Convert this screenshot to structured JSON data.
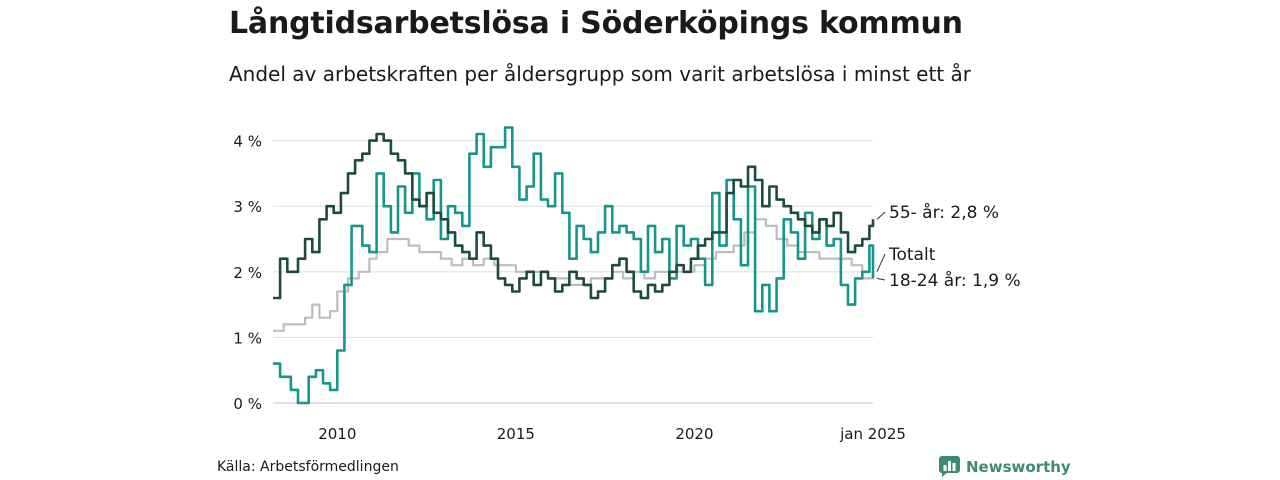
{
  "title": "Långtidsarbetslösa i Söderköpings kommun",
  "subtitle": "Andel av arbetskraften per åldersgrupp som varit arbetslösa i minst ett år",
  "source": "Källa: Arbetsförmedlingen",
  "brand": {
    "name": "Newsworthy",
    "icon": "bar-chart-logo-icon"
  },
  "colors": {
    "series_55": "#1f4a3e",
    "series_18_24": "#16968a",
    "series_total": "#bcbcc2",
    "grid": "#e2e2e2"
  },
  "chart_data": {
    "type": "line",
    "title": "Långtidsarbetslösa i Söderköpings kommun",
    "xlabel": "",
    "ylabel": "",
    "x_range": [
      2008.2,
      2025.0
    ],
    "ylim": [
      0,
      4.3
    ],
    "grid": true,
    "x_ticks": [
      {
        "value": 2010,
        "label": "2010"
      },
      {
        "value": 2015,
        "label": "2015"
      },
      {
        "value": 2020,
        "label": "2020"
      },
      {
        "value": 2025,
        "label": "jan 2025"
      }
    ],
    "y_ticks": [
      {
        "value": 0,
        "label": "0 %"
      },
      {
        "value": 1,
        "label": "1 %"
      },
      {
        "value": 2,
        "label": "2 %"
      },
      {
        "value": 3,
        "label": "3 %"
      },
      {
        "value": 4,
        "label": "4 %"
      }
    ],
    "series": [
      {
        "name": "Totalt",
        "end_label": "Totalt",
        "color": "#bcbcc2",
        "x": [
          2008.2,
          2008.5,
          2008.8,
          2009.1,
          2009.3,
          2009.5,
          2009.8,
          2010.0,
          2010.3,
          2010.6,
          2010.9,
          2011.1,
          2011.4,
          2011.7,
          2012.0,
          2012.3,
          2012.6,
          2012.9,
          2013.2,
          2013.5,
          2013.8,
          2014.1,
          2014.4,
          2014.7,
          2015.0,
          2015.3,
          2015.6,
          2015.9,
          2016.2,
          2016.5,
          2016.8,
          2017.1,
          2017.4,
          2017.7,
          2018.0,
          2018.3,
          2018.6,
          2018.9,
          2019.2,
          2019.5,
          2019.8,
          2020.0,
          2020.3,
          2020.6,
          2020.9,
          2021.1,
          2021.4,
          2021.7,
          2022.0,
          2022.3,
          2022.6,
          2022.9,
          2023.2,
          2023.5,
          2023.8,
          2024.1,
          2024.4,
          2024.7,
          2025.0
        ],
        "values": [
          1.1,
          1.2,
          1.2,
          1.3,
          1.5,
          1.3,
          1.4,
          1.7,
          1.9,
          2.0,
          2.2,
          2.3,
          2.5,
          2.5,
          2.4,
          2.3,
          2.3,
          2.2,
          2.1,
          2.2,
          2.1,
          2.2,
          2.1,
          2.1,
          2.0,
          2.0,
          2.0,
          1.9,
          1.9,
          1.8,
          1.8,
          1.9,
          1.9,
          2.0,
          1.9,
          2.0,
          1.9,
          2.0,
          2.0,
          2.0,
          2.0,
          2.1,
          2.2,
          2.3,
          2.3,
          2.4,
          2.6,
          2.8,
          2.7,
          2.5,
          2.4,
          2.3,
          2.3,
          2.2,
          2.2,
          2.2,
          2.1,
          1.9,
          2.0
        ]
      },
      {
        "name": "18-24 år",
        "end_label": "18-24 år: 1,9 %",
        "color": "#16968a",
        "x": [
          2008.2,
          2008.4,
          2008.7,
          2008.9,
          2009.2,
          2009.4,
          2009.6,
          2009.8,
          2010.0,
          2010.2,
          2010.4,
          2010.7,
          2010.9,
          2011.1,
          2011.3,
          2011.5,
          2011.7,
          2011.9,
          2012.1,
          2012.3,
          2012.5,
          2012.7,
          2012.9,
          2013.1,
          2013.3,
          2013.5,
          2013.7,
          2013.9,
          2014.1,
          2014.3,
          2014.5,
          2014.7,
          2014.9,
          2015.1,
          2015.3,
          2015.5,
          2015.7,
          2015.9,
          2016.1,
          2016.3,
          2016.5,
          2016.7,
          2016.9,
          2017.1,
          2017.3,
          2017.5,
          2017.7,
          2017.9,
          2018.1,
          2018.3,
          2018.5,
          2018.7,
          2018.9,
          2019.1,
          2019.3,
          2019.5,
          2019.7,
          2019.9,
          2020.1,
          2020.3,
          2020.5,
          2020.7,
          2020.9,
          2021.1,
          2021.3,
          2021.5,
          2021.7,
          2021.9,
          2022.1,
          2022.3,
          2022.5,
          2022.7,
          2022.9,
          2023.1,
          2023.3,
          2023.5,
          2023.7,
          2023.9,
          2024.1,
          2024.3,
          2024.5,
          2024.7,
          2024.9,
          2025.0
        ],
        "values": [
          0.6,
          0.4,
          0.2,
          0.0,
          0.4,
          0.5,
          0.3,
          0.2,
          0.8,
          1.8,
          2.7,
          2.4,
          2.3,
          3.5,
          3.0,
          2.6,
          3.3,
          2.9,
          3.5,
          3.0,
          2.8,
          3.4,
          2.5,
          3.0,
          2.9,
          2.7,
          3.8,
          4.1,
          3.6,
          3.9,
          3.9,
          4.2,
          3.6,
          3.1,
          3.3,
          3.8,
          3.1,
          3.0,
          3.5,
          2.9,
          2.2,
          2.7,
          2.5,
          2.3,
          2.6,
          3.0,
          2.6,
          2.7,
          2.6,
          2.5,
          2.0,
          2.7,
          2.3,
          2.5,
          1.9,
          2.7,
          2.4,
          2.5,
          2.2,
          1.8,
          3.2,
          2.4,
          3.4,
          2.8,
          2.1,
          3.3,
          1.4,
          1.8,
          1.4,
          1.9,
          2.8,
          2.6,
          2.2,
          2.9,
          2.5,
          2.8,
          2.4,
          2.5,
          1.8,
          1.5,
          1.9,
          2.0,
          2.4,
          1.9
        ]
      },
      {
        "name": "55- år",
        "end_label": "55- år: 2,8 %",
        "color": "#1f4a3e",
        "x": [
          2008.2,
          2008.4,
          2008.6,
          2008.9,
          2009.1,
          2009.3,
          2009.5,
          2009.7,
          2009.9,
          2010.1,
          2010.3,
          2010.5,
          2010.7,
          2010.9,
          2011.1,
          2011.3,
          2011.5,
          2011.7,
          2011.9,
          2012.1,
          2012.3,
          2012.5,
          2012.7,
          2012.9,
          2013.1,
          2013.3,
          2013.5,
          2013.7,
          2013.9,
          2014.1,
          2014.3,
          2014.5,
          2014.7,
          2014.9,
          2015.1,
          2015.3,
          2015.5,
          2015.7,
          2015.9,
          2016.1,
          2016.3,
          2016.5,
          2016.7,
          2016.9,
          2017.1,
          2017.3,
          2017.5,
          2017.7,
          2017.9,
          2018.1,
          2018.3,
          2018.5,
          2018.7,
          2018.9,
          2019.1,
          2019.3,
          2019.5,
          2019.7,
          2019.9,
          2020.1,
          2020.3,
          2020.5,
          2020.7,
          2020.9,
          2021.1,
          2021.3,
          2021.5,
          2021.7,
          2021.9,
          2022.1,
          2022.3,
          2022.5,
          2022.7,
          2022.9,
          2023.1,
          2023.3,
          2023.5,
          2023.7,
          2023.9,
          2024.1,
          2024.3,
          2024.5,
          2024.7,
          2024.9,
          2025.0
        ],
        "values": [
          1.6,
          2.2,
          2.0,
          2.2,
          2.5,
          2.3,
          2.8,
          3.0,
          2.9,
          3.2,
          3.5,
          3.7,
          3.8,
          4.0,
          4.1,
          4.0,
          3.8,
          3.7,
          3.5,
          3.1,
          3.0,
          3.2,
          2.9,
          2.8,
          2.6,
          2.4,
          2.3,
          2.2,
          2.6,
          2.4,
          2.2,
          1.9,
          1.8,
          1.7,
          1.9,
          2.0,
          1.8,
          2.0,
          1.9,
          1.7,
          1.8,
          2.0,
          1.9,
          1.8,
          1.6,
          1.7,
          1.9,
          2.1,
          2.2,
          2.0,
          1.7,
          1.6,
          1.8,
          1.7,
          1.8,
          2.0,
          2.1,
          2.0,
          2.2,
          2.4,
          2.5,
          2.6,
          2.6,
          3.2,
          3.4,
          3.3,
          3.6,
          3.4,
          3.0,
          3.3,
          3.1,
          3.0,
          2.9,
          2.8,
          2.7,
          2.6,
          2.8,
          2.7,
          2.9,
          2.6,
          2.3,
          2.4,
          2.5,
          2.7,
          2.8
        ]
      }
    ]
  }
}
